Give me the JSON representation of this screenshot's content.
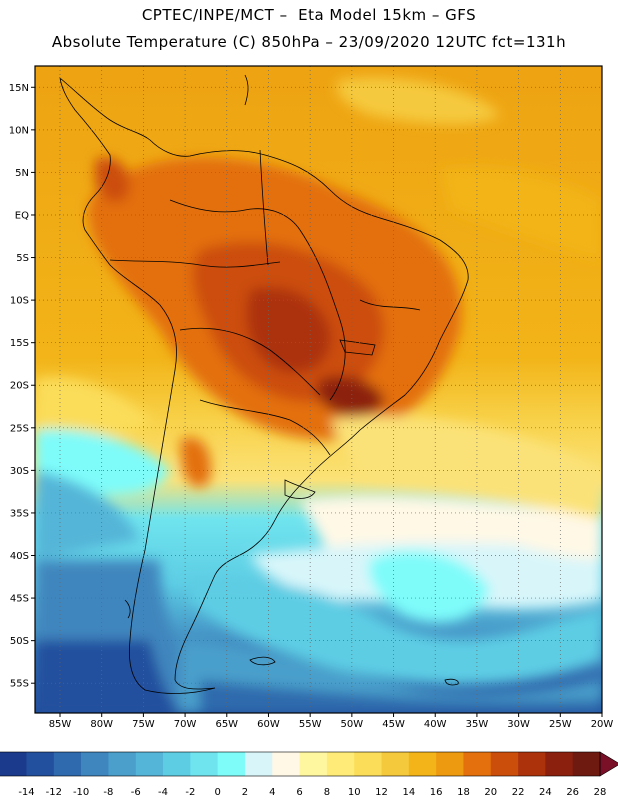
{
  "header": {
    "line1": "CPTEC/INPE/MCT –  Eta Model 15km – GFS",
    "line2": "Absolute Temperature (C) 850hPa – 23/09/2020 12UTC fct=131h"
  },
  "axes": {
    "lat_labels": [
      "15N",
      "10N",
      "5N",
      "EQ",
      "5S",
      "10S",
      "15S",
      "20S",
      "25S",
      "30S",
      "35S",
      "40S",
      "45S",
      "50S",
      "55S"
    ],
    "lon_labels": [
      "85W",
      "80W",
      "75W",
      "70W",
      "65W",
      "60W",
      "55W",
      "50W",
      "45W",
      "40W",
      "35W",
      "30W",
      "25W",
      "20W"
    ]
  },
  "colorbar": {
    "ticks": [
      "-14",
      "-12",
      "-10",
      "-8",
      "-6",
      "-4",
      "-2",
      "0",
      "2",
      "4",
      "6",
      "8",
      "10",
      "12",
      "14",
      "16",
      "18",
      "20",
      "22",
      "24",
      "26",
      "28"
    ],
    "colors": [
      "#1b3a8c",
      "#23509e",
      "#2e6aad",
      "#3f86be",
      "#4a9fcb",
      "#55b5d8",
      "#5dcde4",
      "#6fe4ee",
      "#7efcfa",
      "#d8f6fa",
      "#fff8e6",
      "#fff6a0",
      "#ffec78",
      "#fbdd5a",
      "#f5c93c",
      "#f2b418",
      "#ee9a10",
      "#e3700d",
      "#cc4e0b",
      "#ac320b",
      "#8c200f",
      "#6e1a10"
    ],
    "low_color": "#2b2f9a",
    "high_color": "#7a0f28"
  }
}
